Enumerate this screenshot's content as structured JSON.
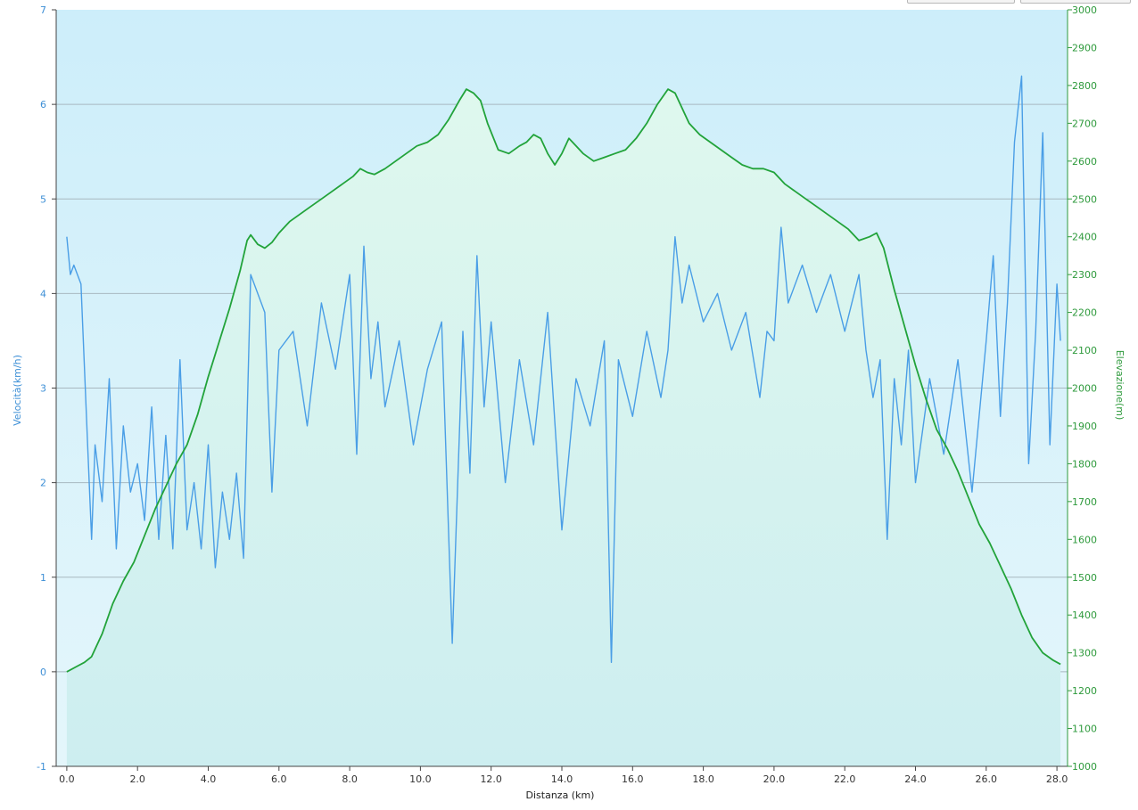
{
  "chart_data": {
    "type": "line",
    "xlabel": "Distanza  (km)",
    "xlim": [
      -0.3,
      28.3
    ],
    "x_ticks": [
      "0.0",
      "2.0",
      "4.0",
      "6.0",
      "8.0",
      "10.0",
      "12.0",
      "14.0",
      "16.0",
      "18.0",
      "20.0",
      "22.0",
      "24.0",
      "26.0",
      "28.0"
    ],
    "x_tick_values": [
      0,
      2,
      4,
      6,
      8,
      10,
      12,
      14,
      16,
      18,
      20,
      22,
      24,
      26,
      28
    ],
    "y_left": {
      "label": "Velocità(km/h)",
      "ylim": [
        -1,
        7
      ],
      "ticks": [
        "-1",
        "0",
        "1",
        "2",
        "3",
        "4",
        "5",
        "6",
        "7"
      ]
    },
    "y_right": {
      "label": "Elevazione(m)",
      "ylim": [
        1000,
        3000
      ],
      "ticks": [
        "1000",
        "1100",
        "1200",
        "1300",
        "1400",
        "1500",
        "1600",
        "1700",
        "1800",
        "1900",
        "2000",
        "2100",
        "2200",
        "2300",
        "2400",
        "2500",
        "2600",
        "2700",
        "2800",
        "2900",
        "3000"
      ]
    },
    "grid": {
      "horizontal": true,
      "vertical": false
    },
    "colors": {
      "speed": "#4a9ee6",
      "elevation": "#22a33a",
      "elevation_fill": "#d4f4e6",
      "plot_top": "#cdeefa",
      "plot_bottom": "#e2f6fb",
      "grid": "#a8b8c0"
    },
    "series": [
      {
        "axis": "left",
        "x": [
          0,
          0.1,
          0.2,
          0.4,
          0.6,
          0.7,
          0.8,
          1.0,
          1.2,
          1.4,
          1.6,
          1.8,
          2.0,
          2.2,
          2.4,
          2.6,
          2.8,
          3.0,
          3.2,
          3.4,
          3.6,
          3.8,
          4.0,
          4.2,
          4.4,
          4.6,
          4.8,
          5.0,
          5.2,
          5.4,
          5.6,
          5.8,
          6.0,
          6.4,
          6.8,
          7.2,
          7.6,
          8.0,
          8.2,
          8.4,
          8.6,
          8.8,
          9.0,
          9.4,
          9.8,
          10.2,
          10.6,
          10.9,
          11.2,
          11.4,
          11.6,
          11.8,
          12.0,
          12.4,
          12.8,
          13.2,
          13.6,
          14.0,
          14.4,
          14.8,
          15.2,
          15.4,
          15.6,
          16.0,
          16.4,
          16.8,
          17.0,
          17.2,
          17.4,
          17.6,
          18.0,
          18.4,
          18.8,
          19.2,
          19.6,
          19.8,
          20.0,
          20.2,
          20.4,
          20.8,
          21.2,
          21.6,
          22.0,
          22.4,
          22.6,
          22.8,
          23.0,
          23.2,
          23.4,
          23.6,
          23.8,
          24.0,
          24.4,
          24.8,
          25.2,
          25.6,
          26.0,
          26.2,
          26.4,
          26.6,
          26.8,
          27.0,
          27.2,
          27.4,
          27.6,
          27.8,
          28.0,
          28.1
        ],
        "values": [
          4.6,
          4.2,
          4.3,
          4.1,
          2.3,
          1.4,
          2.4,
          1.8,
          3.1,
          1.3,
          2.6,
          1.9,
          2.2,
          1.6,
          2.8,
          1.4,
          2.5,
          1.3,
          3.3,
          1.5,
          2.0,
          1.3,
          2.4,
          1.1,
          1.9,
          1.4,
          2.1,
          1.2,
          4.2,
          4.0,
          3.8,
          1.9,
          3.4,
          3.6,
          2.6,
          3.9,
          3.2,
          4.2,
          2.3,
          4.5,
          3.1,
          3.7,
          2.8,
          3.5,
          2.4,
          3.2,
          3.7,
          0.3,
          3.6,
          2.1,
          4.4,
          2.8,
          3.7,
          2.0,
          3.3,
          2.4,
          3.8,
          1.5,
          3.1,
          2.6,
          3.5,
          0.1,
          3.3,
          2.7,
          3.6,
          2.9,
          3.4,
          4.6,
          3.9,
          4.3,
          3.7,
          4.0,
          3.4,
          3.8,
          2.9,
          3.6,
          3.5,
          4.7,
          3.9,
          4.3,
          3.8,
          4.2,
          3.6,
          4.2,
          3.4,
          2.9,
          3.3,
          1.4,
          3.1,
          2.4,
          3.4,
          2.0,
          3.1,
          2.3,
          3.3,
          1.9,
          3.5,
          4.4,
          2.7,
          3.9,
          5.6,
          6.3,
          2.2,
          3.6,
          5.7,
          2.4,
          4.1,
          3.5
        ]
      },
      {
        "axis": "right",
        "x": [
          0,
          0.3,
          0.5,
          0.7,
          1.0,
          1.3,
          1.6,
          1.9,
          2.2,
          2.5,
          2.8,
          3.1,
          3.4,
          3.7,
          4.0,
          4.3,
          4.6,
          4.9,
          5.1,
          5.2,
          5.4,
          5.6,
          5.8,
          6.0,
          6.3,
          6.6,
          6.9,
          7.2,
          7.5,
          7.8,
          8.1,
          8.3,
          8.5,
          8.7,
          9.0,
          9.3,
          9.6,
          9.9,
          10.2,
          10.5,
          10.8,
          11.1,
          11.3,
          11.5,
          11.7,
          11.9,
          12.2,
          12.5,
          12.8,
          13.0,
          13.2,
          13.4,
          13.6,
          13.8,
          14.0,
          14.2,
          14.4,
          14.6,
          14.9,
          15.2,
          15.5,
          15.8,
          16.1,
          16.4,
          16.7,
          17.0,
          17.2,
          17.4,
          17.6,
          17.9,
          18.2,
          18.5,
          18.8,
          19.1,
          19.4,
          19.7,
          20.0,
          20.3,
          20.6,
          20.9,
          21.2,
          21.5,
          21.8,
          22.1,
          22.4,
          22.7,
          22.9,
          23.1,
          23.4,
          23.7,
          24.0,
          24.3,
          24.6,
          24.9,
          25.2,
          25.5,
          25.8,
          26.1,
          26.4,
          26.7,
          27.0,
          27.3,
          27.6,
          27.9,
          28.1
        ],
        "values": [
          1250,
          1265,
          1275,
          1290,
          1350,
          1430,
          1490,
          1540,
          1610,
          1680,
          1740,
          1800,
          1850,
          1930,
          2030,
          2120,
          2210,
          2310,
          2390,
          2405,
          2380,
          2370,
          2385,
          2410,
          2440,
          2460,
          2480,
          2500,
          2520,
          2540,
          2560,
          2580,
          2570,
          2565,
          2580,
          2600,
          2620,
          2640,
          2650,
          2670,
          2710,
          2760,
          2790,
          2780,
          2760,
          2700,
          2630,
          2620,
          2640,
          2650,
          2670,
          2660,
          2620,
          2590,
          2620,
          2660,
          2640,
          2620,
          2600,
          2610,
          2620,
          2630,
          2660,
          2700,
          2750,
          2790,
          2780,
          2740,
          2700,
          2670,
          2650,
          2630,
          2610,
          2590,
          2580,
          2580,
          2570,
          2540,
          2520,
          2500,
          2480,
          2460,
          2440,
          2420,
          2390,
          2400,
          2410,
          2370,
          2260,
          2160,
          2060,
          1970,
          1890,
          1840,
          1780,
          1710,
          1640,
          1590,
          1530,
          1470,
          1400,
          1340,
          1300,
          1280,
          1270
        ]
      }
    ]
  }
}
